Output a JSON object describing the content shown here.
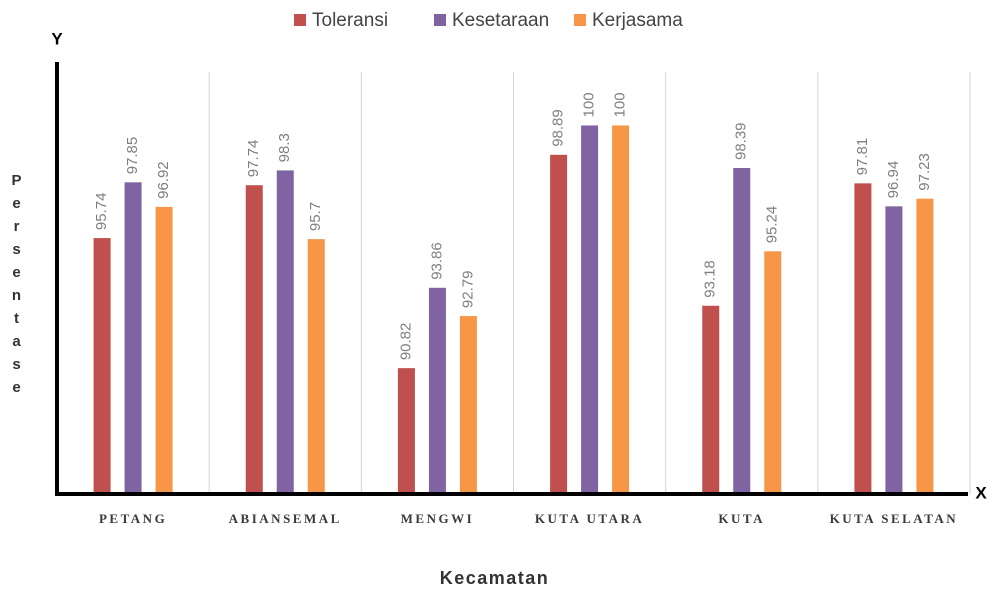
{
  "chart_data": {
    "type": "bar",
    "x_label": "Kecamatan",
    "y_label": "Persentase",
    "x_axis_letter": "X",
    "y_axis_letter": "Y",
    "categories": [
      "PETANG",
      "ABIANSEMAL",
      "MENGWI",
      "KUTA UTARA",
      "KUTA",
      "KUTA SELATAN"
    ],
    "series": [
      {
        "name": "Toleransi",
        "color": "#c0504d",
        "values": [
          95.74,
          97.74,
          90.82,
          98.89,
          93.18,
          97.81
        ]
      },
      {
        "name": "Kesetaraan",
        "color": "#8064a2",
        "values": [
          97.85,
          98.3,
          93.86,
          100,
          98.39,
          96.94
        ]
      },
      {
        "name": "Kerjasama",
        "color": "#f79646",
        "values": [
          96.92,
          95.7,
          92.79,
          100,
          95.24,
          97.23
        ]
      }
    ],
    "ylim": [
      86.06,
      102.4
    ],
    "legend": "top"
  }
}
